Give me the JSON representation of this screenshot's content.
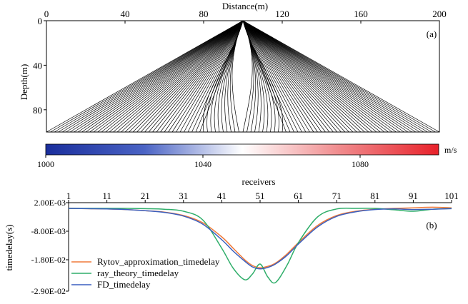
{
  "chart_data": [
    {
      "type": "raypaths",
      "panel_label": "(a)",
      "xlabel": "Distance(m)",
      "ylabel": "Depth(m)",
      "xlim": [
        0,
        200
      ],
      "ylim": [
        0,
        100
      ],
      "x_ticks": [
        "0",
        "40",
        "80",
        "120",
        "160",
        "200"
      ],
      "x_tick_values": [
        0,
        40,
        80,
        120,
        160,
        200
      ],
      "y_ticks": [
        "0",
        "40",
        "80"
      ],
      "y_tick_values": [
        0,
        40,
        80
      ],
      "source": {
        "x": 100,
        "depth": 0
      },
      "receiver_depth": 100,
      "receivers_x_range": [
        0,
        200
      ],
      "ray_count": 101
    },
    {
      "type": "colorbar",
      "unit": "m/s",
      "range": [
        1000,
        1100
      ],
      "tick_labels": [
        "1000",
        "1040",
        "1080"
      ],
      "tick_values": [
        1000,
        1040,
        1080
      ],
      "colors": {
        "low": "#1a2e9c",
        "mid": "#ffffff",
        "high": "#e8212a"
      }
    },
    {
      "type": "line",
      "panel_label": "(b)",
      "xlabel": "receivers",
      "ylabel": "timedelay(s)",
      "xlim": [
        1,
        101
      ],
      "ylim": [
        -0.029,
        0.002
      ],
      "x_ticks": [
        "1",
        "11",
        "21",
        "31",
        "41",
        "51",
        "61",
        "71",
        "81",
        "91",
        "101"
      ],
      "x_tick_values": [
        1,
        11,
        21,
        31,
        41,
        51,
        61,
        71,
        81,
        91,
        101
      ],
      "y_ticks": [
        "2.00E-03",
        "-8.00E-03",
        "-1.80E-02",
        "-2.90E-02"
      ],
      "y_tick_values": [
        0.002,
        -0.008,
        -0.018,
        -0.029
      ],
      "x": [
        1,
        6,
        11,
        16,
        21,
        26,
        31,
        36,
        41,
        44,
        47,
        49,
        51,
        53,
        55,
        58,
        61,
        66,
        71,
        76,
        81,
        86,
        91,
        96,
        101
      ],
      "series": [
        {
          "name": "Rytov_approximation_timedelay",
          "color": "#f07a3a",
          "values": [
            0.0,
            -0.0001,
            -0.0002,
            -0.0004,
            -0.0008,
            -0.0013,
            -0.0025,
            -0.005,
            -0.01,
            -0.014,
            -0.018,
            -0.02,
            -0.0208,
            -0.0203,
            -0.0192,
            -0.016,
            -0.012,
            -0.006,
            -0.0025,
            -0.001,
            -0.0003,
            0.0,
            0.0002,
            0.0004,
            0.0002
          ]
        },
        {
          "name": "ray_theory_timedelay",
          "color": "#2fae6a",
          "values": [
            0.0,
            0.0,
            0.0,
            0.0,
            -0.0001,
            -0.0003,
            -0.001,
            -0.004,
            -0.014,
            -0.021,
            -0.025,
            -0.023,
            -0.0195,
            -0.024,
            -0.026,
            -0.02,
            -0.012,
            -0.003,
            -0.0002,
            0.0,
            0.0,
            -0.0005,
            -0.001,
            -0.0003,
            0.0
          ]
        },
        {
          "name": "FD_timedelay",
          "color": "#3a5fbf",
          "values": [
            0.0,
            -0.0001,
            -0.0002,
            -0.0004,
            -0.0008,
            -0.0014,
            -0.0027,
            -0.0055,
            -0.011,
            -0.015,
            -0.0185,
            -0.0205,
            -0.0212,
            -0.0207,
            -0.0195,
            -0.0165,
            -0.0125,
            -0.0065,
            -0.0028,
            -0.0012,
            -0.0004,
            -0.0002,
            -0.0004,
            -0.0003,
            -0.0001
          ]
        }
      ]
    }
  ]
}
